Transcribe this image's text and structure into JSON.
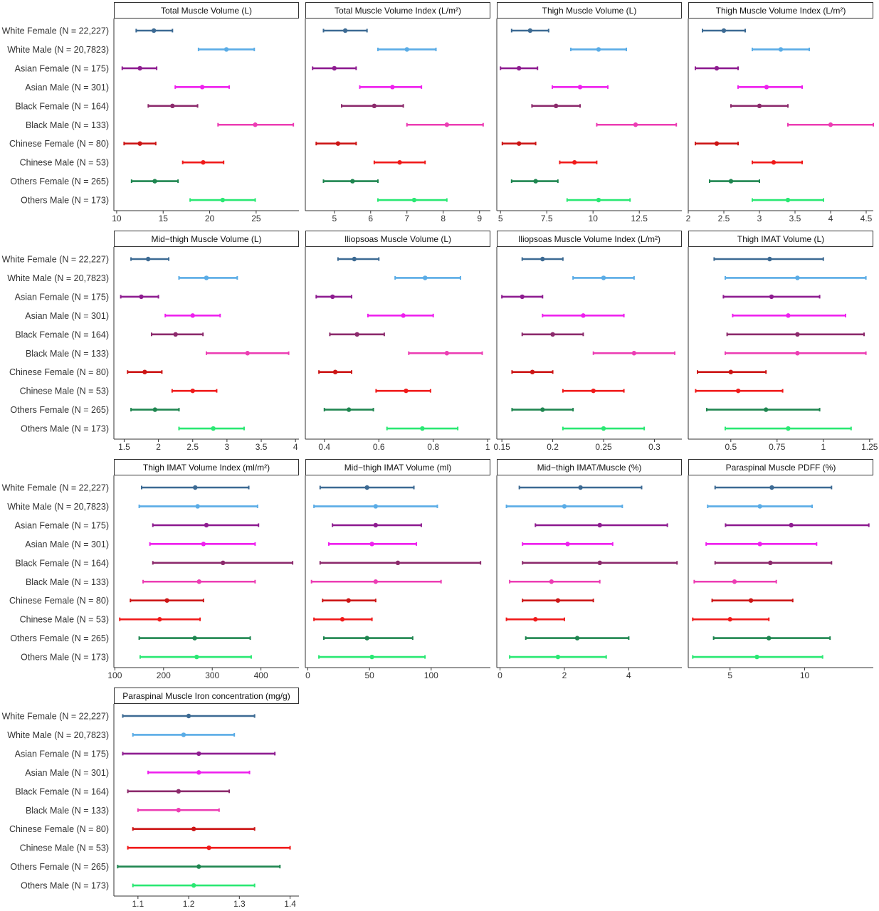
{
  "groups": [
    {
      "label": "White Female (N = 22,227)",
      "color": "#3c6a93"
    },
    {
      "label": "White Male (N = 20,7823)",
      "color": "#5aace6"
    },
    {
      "label": "Asian Female (N = 175)",
      "color": "#8e1c90"
    },
    {
      "label": "Asian Male (N = 301)",
      "color": "#ee20ee"
    },
    {
      "label": "Black Female (N = 164)",
      "color": "#8c2a6c"
    },
    {
      "label": "Black Male (N = 133)",
      "color": "#ec3db3"
    },
    {
      "label": "Chinese Female (N = 80)",
      "color": "#cc1515"
    },
    {
      "label": "Chinese Male (N = 53)",
      "color": "#f01a1a"
    },
    {
      "label": "Others Female (N = 265)",
      "color": "#1f8650"
    },
    {
      "label": "Others Male (N = 173)",
      "color": "#2ae873"
    }
  ],
  "chart_data": [
    {
      "type": "scatter",
      "title": "Total Muscle Volume (L)",
      "xlim": [
        9.7,
        29.6
      ],
      "ticks": [
        10,
        15,
        20,
        25
      ],
      "mean": [
        14.0,
        21.8,
        12.5,
        19.2,
        16.0,
        24.9,
        12.5,
        19.3,
        14.1,
        21.4
      ],
      "low": [
        12.1,
        18.8,
        10.6,
        16.3,
        13.4,
        20.9,
        10.8,
        17.1,
        11.6,
        17.9
      ],
      "high": [
        16.0,
        24.8,
        14.3,
        22.1,
        18.7,
        29.0,
        14.2,
        21.5,
        16.6,
        24.9
      ]
    },
    {
      "type": "scatter",
      "title": "Total Muscle Volume Index (L/m²)",
      "xlim": [
        4.2,
        9.3
      ],
      "ticks": [
        5,
        6,
        7,
        8,
        9
      ],
      "mean": [
        5.3,
        7.0,
        5.0,
        6.6,
        6.1,
        8.1,
        5.1,
        6.8,
        5.5,
        7.2
      ],
      "low": [
        4.7,
        6.2,
        4.4,
        5.7,
        5.2,
        7.0,
        4.5,
        6.1,
        4.7,
        6.2
      ],
      "high": [
        5.9,
        7.8,
        5.6,
        7.4,
        6.9,
        9.1,
        5.6,
        7.5,
        6.2,
        8.1
      ]
    },
    {
      "type": "scatter",
      "title": "Thigh Muscle Volume (L)",
      "xlim": [
        4.8,
        14.8
      ],
      "ticks": [
        5.0,
        7.5,
        10.0,
        12.5
      ],
      "mean": [
        6.6,
        10.3,
        6.0,
        9.3,
        8.0,
        12.3,
        6.0,
        9.0,
        6.9,
        10.3
      ],
      "low": [
        5.6,
        8.8,
        5.0,
        7.8,
        6.7,
        10.2,
        5.1,
        8.2,
        5.6,
        8.6
      ],
      "high": [
        7.6,
        11.8,
        7.0,
        10.8,
        9.3,
        14.5,
        6.9,
        10.2,
        8.1,
        12.0
      ]
    },
    {
      "type": "scatter",
      "title": "Thigh Muscle Volume Index (L/m²)",
      "xlim": [
        2.0,
        4.6
      ],
      "ticks": [
        2.0,
        2.5,
        3.0,
        3.5,
        4.0,
        4.5
      ],
      "mean": [
        2.5,
        3.3,
        2.4,
        3.1,
        3.0,
        4.0,
        2.4,
        3.2,
        2.6,
        3.4
      ],
      "low": [
        2.2,
        2.9,
        2.1,
        2.7,
        2.6,
        3.4,
        2.1,
        2.9,
        2.3,
        2.9
      ],
      "high": [
        2.8,
        3.7,
        2.7,
        3.6,
        3.4,
        4.6,
        2.7,
        3.6,
        3.0,
        3.9
      ]
    },
    {
      "type": "scatter",
      "title": "Mid−thigh Muscle Volume (L)",
      "xlim": [
        1.35,
        4.05
      ],
      "ticks": [
        1.5,
        2.0,
        2.5,
        3.0,
        3.5,
        4.0
      ],
      "mean": [
        1.85,
        2.7,
        1.75,
        2.5,
        2.25,
        3.3,
        1.8,
        2.5,
        1.95,
        2.8
      ],
      "low": [
        1.6,
        2.3,
        1.45,
        2.1,
        1.9,
        2.7,
        1.55,
        2.2,
        1.6,
        2.3
      ],
      "high": [
        2.15,
        3.15,
        2.0,
        2.9,
        2.65,
        3.9,
        2.05,
        2.85,
        2.3,
        3.25
      ]
    },
    {
      "type": "scatter",
      "title": "Iliopsoas Muscle Volume (L)",
      "xlim": [
        0.33,
        1.01
      ],
      "ticks": [
        0.4,
        0.6,
        0.8,
        1.0
      ],
      "mean": [
        0.51,
        0.77,
        0.43,
        0.69,
        0.52,
        0.85,
        0.44,
        0.7,
        0.49,
        0.76
      ],
      "low": [
        0.45,
        0.66,
        0.37,
        0.56,
        0.42,
        0.71,
        0.38,
        0.59,
        0.4,
        0.63
      ],
      "high": [
        0.6,
        0.9,
        0.5,
        0.8,
        0.62,
        0.98,
        0.5,
        0.79,
        0.58,
        0.89
      ]
    },
    {
      "type": "scatter",
      "title": "Iliopsoas Muscle Volume Index (L/m²)",
      "xlim": [
        0.145,
        0.327
      ],
      "ticks": [
        0.15,
        0.2,
        0.25,
        0.3
      ],
      "mean": [
        0.19,
        0.25,
        0.17,
        0.23,
        0.2,
        0.28,
        0.18,
        0.24,
        0.19,
        0.25
      ],
      "low": [
        0.17,
        0.22,
        0.15,
        0.19,
        0.17,
        0.24,
        0.16,
        0.21,
        0.16,
        0.21
      ],
      "high": [
        0.21,
        0.28,
        0.19,
        0.27,
        0.23,
        0.32,
        0.2,
        0.27,
        0.22,
        0.29
      ]
    },
    {
      "type": "scatter",
      "title": "Thigh IMAT Volume (L)",
      "xlim": [
        0.27,
        1.27
      ],
      "ticks": [
        0.5,
        0.75,
        1.0,
        1.25
      ],
      "mean": [
        0.71,
        0.86,
        0.72,
        0.81,
        0.86,
        0.86,
        0.5,
        0.54,
        0.69,
        0.81
      ],
      "low": [
        0.41,
        0.47,
        0.46,
        0.51,
        0.48,
        0.47,
        0.32,
        0.31,
        0.37,
        0.47
      ],
      "high": [
        1.0,
        1.23,
        0.98,
        1.12,
        1.22,
        1.23,
        0.69,
        0.78,
        0.98,
        1.15
      ]
    },
    {
      "type": "scatter",
      "title": "Thigh IMAT Volume Index (ml/m²)",
      "xlim": [
        98,
        478
      ],
      "ticks": [
        100,
        200,
        300,
        400
      ],
      "mean": [
        265,
        270,
        288,
        282,
        322,
        273,
        207,
        192,
        264,
        268
      ],
      "low": [
        155,
        150,
        178,
        172,
        178,
        158,
        132,
        110,
        150,
        152
      ],
      "high": [
        375,
        393,
        395,
        388,
        465,
        388,
        282,
        275,
        378,
        380
      ]
    },
    {
      "type": "scatter",
      "title": "Mid−thigh IMAT Volume (ml)",
      "xlim": [
        -2,
        148
      ],
      "ticks": [
        0,
        50,
        100
      ],
      "mean": [
        48,
        55,
        55,
        52,
        73,
        55,
        33,
        28,
        48,
        52
      ],
      "low": [
        10,
        5,
        20,
        17,
        10,
        3,
        12,
        5,
        13,
        9
      ],
      "high": [
        86,
        105,
        92,
        88,
        140,
        108,
        55,
        52,
        85,
        95
      ]
    },
    {
      "type": "scatter",
      "title": "Mid−thigh IMAT/Muscle (%)",
      "xlim": [
        -0.1,
        5.65
      ],
      "ticks": [
        0,
        2,
        4
      ],
      "mean": [
        2.5,
        2.0,
        3.1,
        2.1,
        3.1,
        1.6,
        1.8,
        1.1,
        2.4,
        1.8
      ],
      "low": [
        0.6,
        0.2,
        1.1,
        0.7,
        0.7,
        0.3,
        0.7,
        0.2,
        0.8,
        0.3
      ],
      "high": [
        4.4,
        3.8,
        5.2,
        3.5,
        5.5,
        3.1,
        2.9,
        2.0,
        4.0,
        3.3
      ]
    },
    {
      "type": "scatter",
      "title": "Paraspinal Muscle PDFF (%)",
      "xlim": [
        2.2,
        14.6
      ],
      "ticks": [
        5,
        10
      ],
      "mean": [
        7.8,
        7.0,
        9.1,
        7.0,
        7.7,
        5.3,
        6.4,
        5.0,
        7.6,
        6.8
      ],
      "low": [
        4.0,
        3.5,
        4.7,
        3.4,
        4.0,
        2.6,
        3.8,
        2.5,
        3.9,
        2.5
      ],
      "high": [
        11.8,
        10.5,
        14.3,
        10.8,
        11.8,
        8.1,
        9.2,
        7.6,
        11.7,
        11.2
      ]
    },
    {
      "type": "scatter",
      "title": "Paraspinal Muscle Iron concentration (mg/g)",
      "xlim": [
        1.0525,
        1.4175
      ],
      "ticks": [
        1.1,
        1.2,
        1.3,
        1.4
      ],
      "mean": [
        1.2,
        1.19,
        1.22,
        1.22,
        1.18,
        1.18,
        1.21,
        1.24,
        1.22,
        1.21
      ],
      "low": [
        1.07,
        1.09,
        1.07,
        1.12,
        1.08,
        1.1,
        1.09,
        1.08,
        1.06,
        1.09
      ],
      "high": [
        1.33,
        1.29,
        1.37,
        1.32,
        1.28,
        1.26,
        1.33,
        1.4,
        1.38,
        1.33
      ]
    }
  ]
}
